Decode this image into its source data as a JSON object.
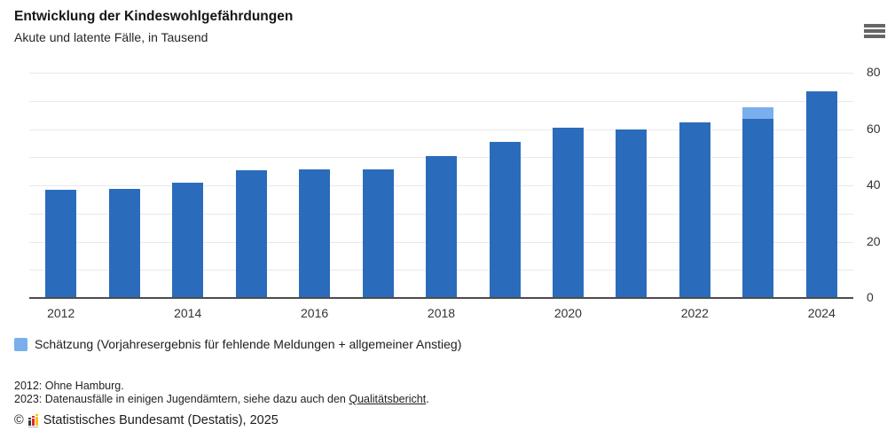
{
  "header": {
    "title": "Entwicklung der Kindeswohlgefährdungen",
    "subtitle": "Akute und latente Fälle, in Tausend",
    "menu_icon": "hamburger-icon"
  },
  "chart_data": {
    "type": "bar",
    "title": "Entwicklung der Kindeswohlgefährdungen",
    "subtitle": "Akute und latente Fälle, in Tausend",
    "unit": "Tausend",
    "stacked": true,
    "grid": true,
    "gridline_step": 10,
    "ylim": [
      0,
      80
    ],
    "yticks": [
      0,
      20,
      40,
      60,
      80
    ],
    "yaxis_position": "right",
    "categories": [
      "2012",
      "2013",
      "2014",
      "2015",
      "2016",
      "2017",
      "2018",
      "2019",
      "2020",
      "2021",
      "2022",
      "2023",
      "2024"
    ],
    "xticks_shown": [
      "2012",
      "2014",
      "2016",
      "2018",
      "2020",
      "2022",
      "2024"
    ],
    "series": [
      {
        "name": "Akute und latente Fälle",
        "color": "#2a6cbb",
        "values": [
          38.3,
          38.7,
          40.9,
          45.4,
          45.8,
          45.7,
          50.4,
          55.5,
          60.6,
          59.9,
          62.3,
          63.7,
          73.3
        ]
      },
      {
        "name": "Schätzung (Vorjahresergebnis für fehlende Meldungen + allgemeiner Anstieg)",
        "color": "#79afec",
        "values": [
          0,
          0,
          0,
          0,
          0,
          0,
          0,
          0,
          0,
          0,
          0,
          4.0,
          0
        ]
      }
    ]
  },
  "legend": {
    "swatch_color": "#79afec",
    "label": "Schätzung (Vorjahresergebnis für fehlende Meldungen + allgemeiner Anstieg)"
  },
  "footnotes": [
    {
      "text": "2012: Ohne Hamburg."
    },
    {
      "prefix": "2023: Datenausfälle in einigen Jugendämtern, siehe dazu auch den ",
      "link": "Qualitätsbericht",
      "suffix": "."
    }
  ],
  "copyright": {
    "symbol": "©",
    "logo_icon": "destatis-logo-icon",
    "publisher": "Statistisches Bundesamt (Destatis), 2025"
  },
  "colors": {
    "bar": "#2a6cbb",
    "estimate": "#79afec",
    "gridline": "#e9e9e9",
    "axis": "#4d4d4d",
    "text": "#1f1f1f"
  }
}
